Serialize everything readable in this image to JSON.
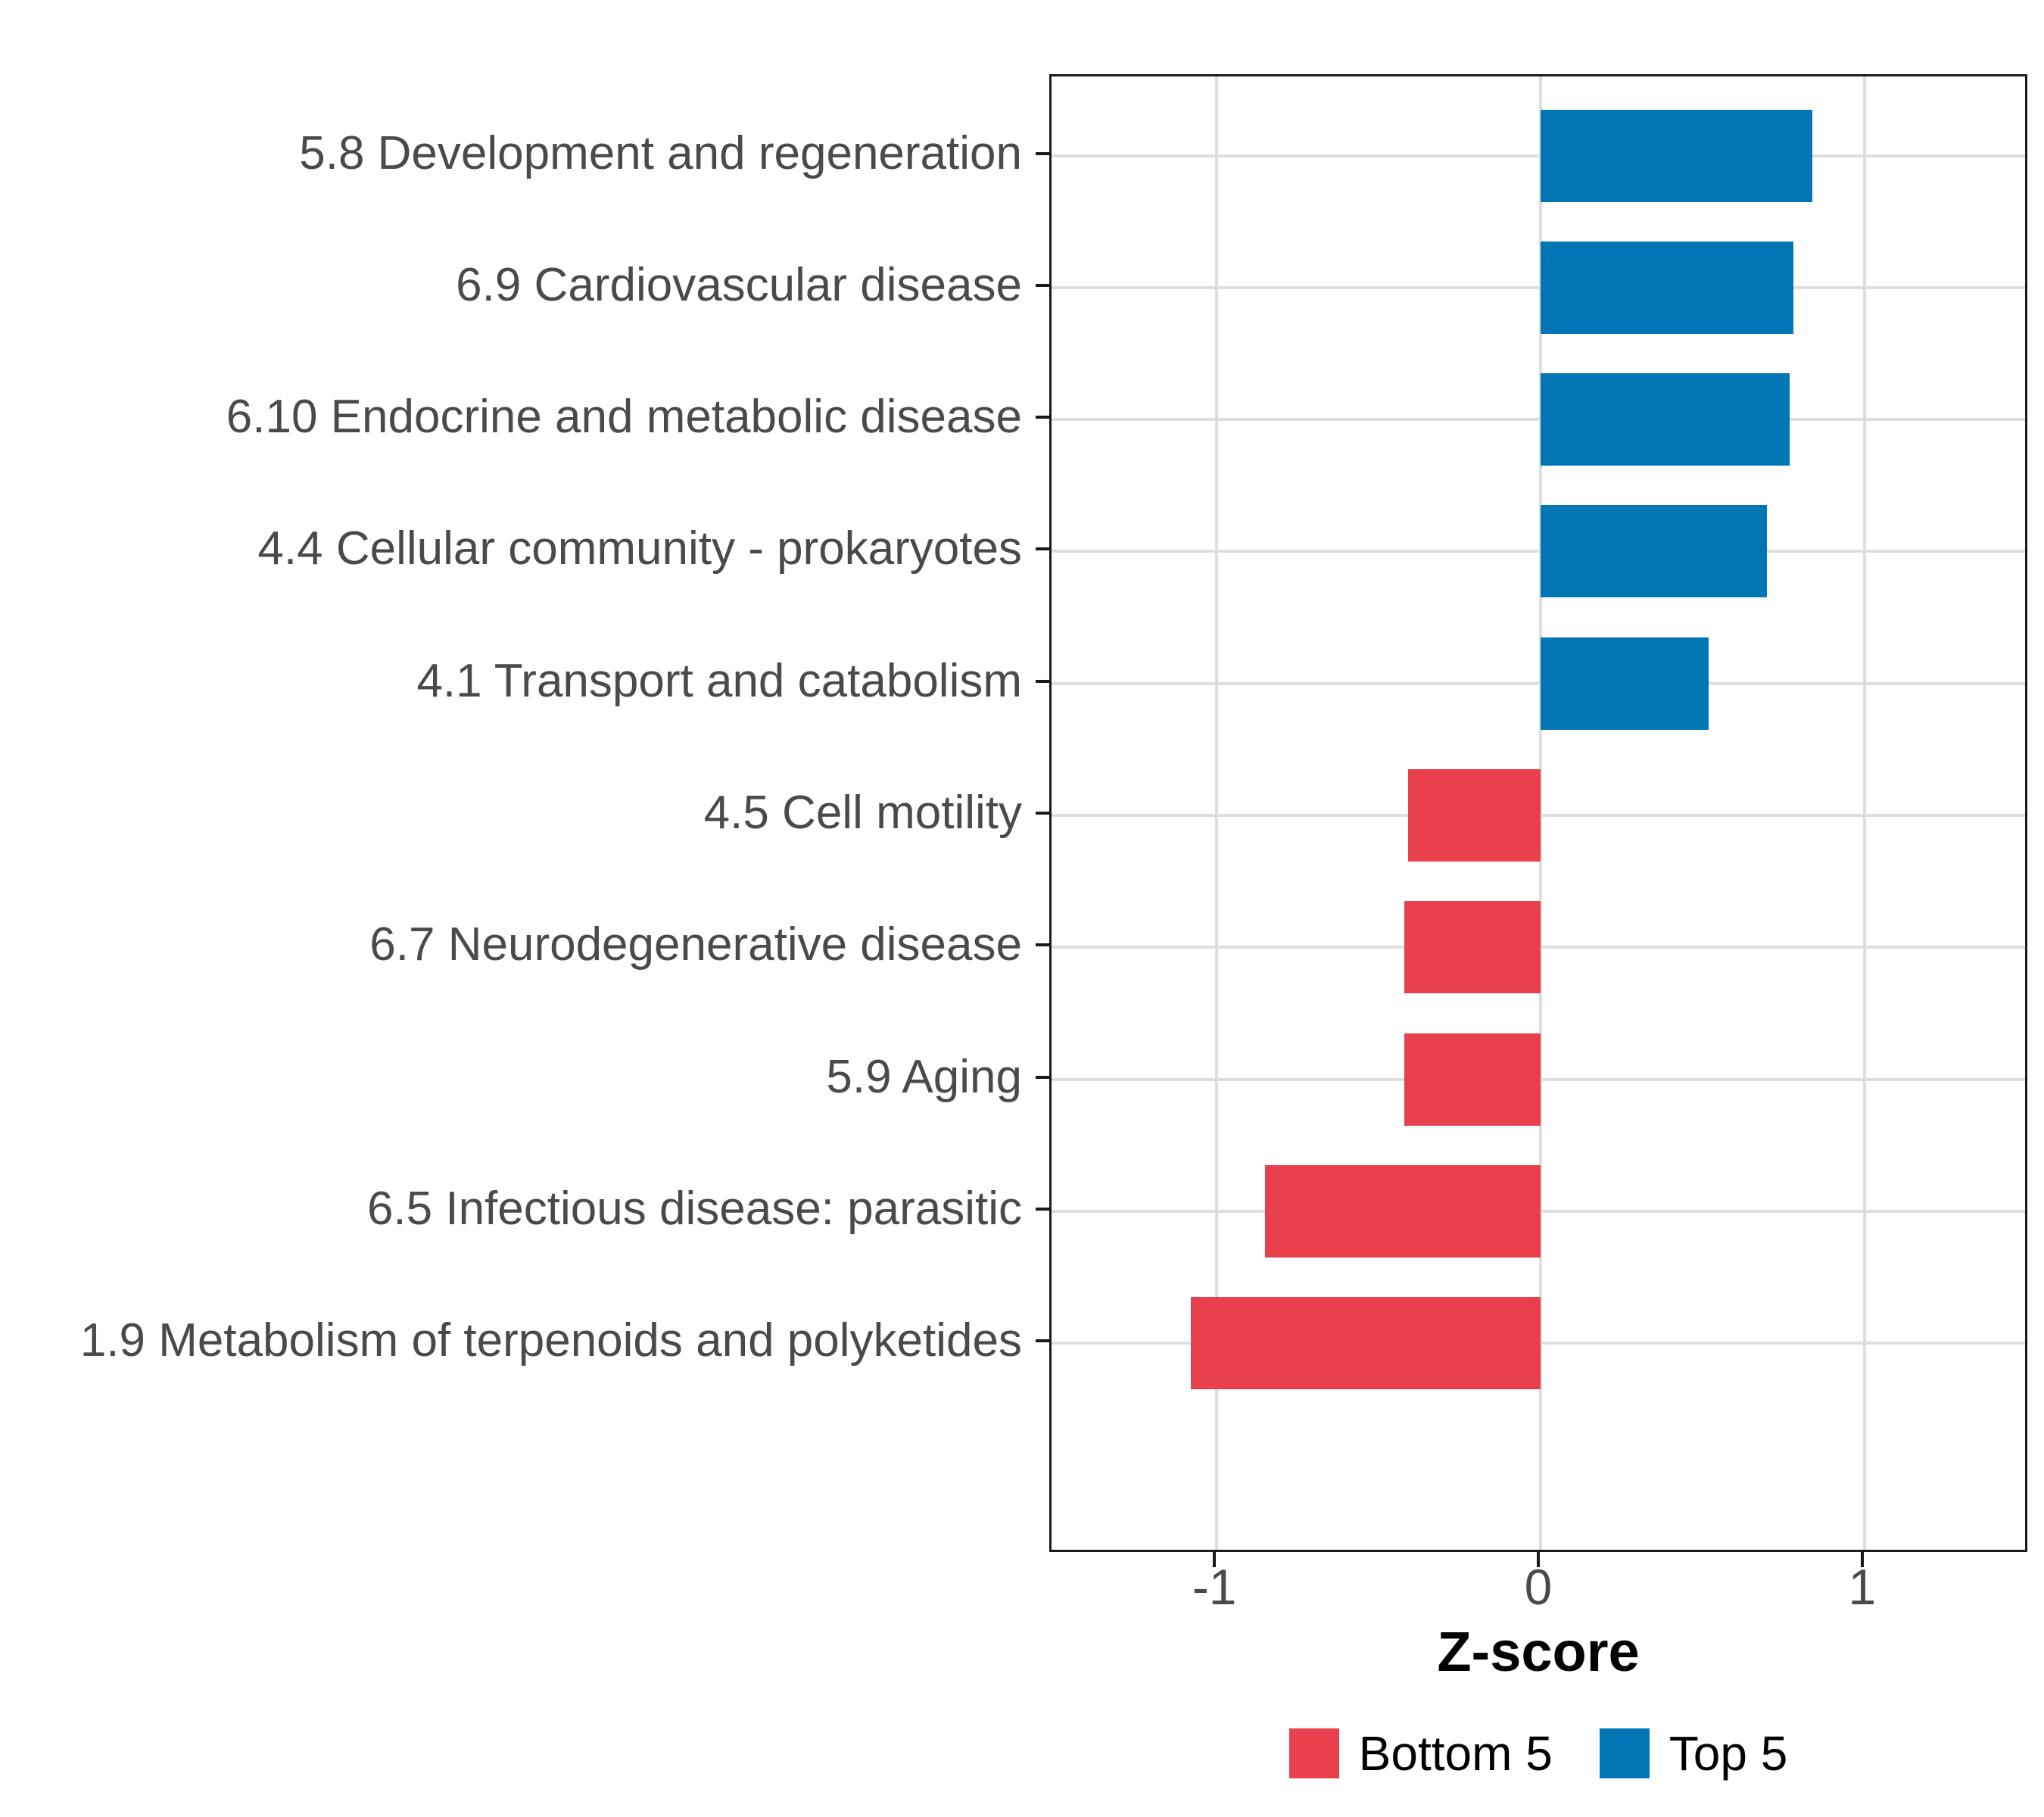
{
  "chart_data": {
    "type": "bar",
    "orientation": "horizontal",
    "title": "",
    "xlabel": "Z-score",
    "ylabel": "",
    "categories": [
      "5.8 Development and regeneration",
      "6.9 Cardiovascular disease",
      "6.10 Endocrine and metabolic disease",
      "4.4 Cellular community - prokaryotes",
      "4.1 Transport and catabolism",
      "4.5 Cell motility",
      "6.7 Neurodegenerative disease",
      "5.9 Aging",
      "6.5 Infectious disease: parasitic",
      "1.9 Metabolism of terpenoids and polyketides"
    ],
    "values": [
      0.84,
      0.78,
      0.77,
      0.7,
      0.52,
      -0.41,
      -0.42,
      -0.42,
      -0.85,
      -1.08
    ],
    "groups": [
      "Top 5",
      "Top 5",
      "Top 5",
      "Top 5",
      "Top 5",
      "Bottom 5",
      "Bottom 5",
      "Bottom 5",
      "Bottom 5",
      "Bottom 5"
    ],
    "colors": {
      "Top 5": "#0076B4",
      "Bottom 5": "#E8414D"
    },
    "x_ticks": [
      -1,
      0,
      1
    ],
    "x_tick_labels": [
      "-1",
      "0",
      "1"
    ],
    "xlim": [
      -1.51,
      1.51
    ],
    "bar_width_ratio": 0.7,
    "grid": "major-only",
    "panel_border_color": "#1a1a1a",
    "gridline_color": "#dedede",
    "axis_text_color": "#4a4a4a",
    "legend": {
      "position": "bottom",
      "items": [
        {
          "label": "Bottom 5",
          "color": "#E8414D"
        },
        {
          "label": "Top 5",
          "color": "#0076B4"
        }
      ]
    }
  }
}
